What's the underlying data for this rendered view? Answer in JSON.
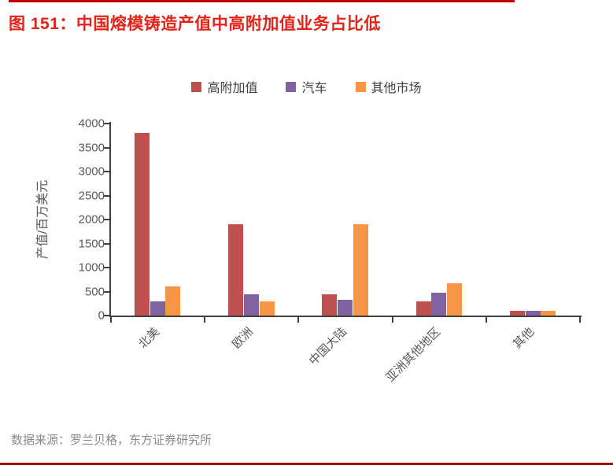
{
  "figure": {
    "label": "图 151：中国熔模铸造产值中高附加值业务占比低",
    "source": "数据来源：罗兰贝格，东方证券研究所",
    "colors": {
      "title": "#e2231a",
      "top_rule": "#c00000",
      "bottom_rule": "#a40000",
      "axis": "#3f3f3f",
      "tick_label": "#595959",
      "source_text": "#8a8a8a"
    }
  },
  "chart_data": {
    "type": "bar",
    "title": "中国熔模铸造产值中高附加值业务占比低",
    "categories": [
      "北美",
      "欧洲",
      "中国大陆",
      "亚洲其他地区",
      "其他"
    ],
    "series": [
      {
        "name": "高附加值",
        "color": "#c0504d",
        "values": [
          3800,
          1900,
          450,
          300,
          100
        ]
      },
      {
        "name": "汽车",
        "color": "#8064a2",
        "values": [
          300,
          450,
          330,
          480,
          100
        ]
      },
      {
        "name": "其他市场",
        "color": "#f79646",
        "values": [
          600,
          300,
          1900,
          680,
          100
        ]
      }
    ],
    "xlabel": "",
    "ylabel": "产值/百万美元",
    "ylim": [
      0,
      4000
    ],
    "ytick_step": 500,
    "grid": false,
    "legend_position": "top"
  }
}
